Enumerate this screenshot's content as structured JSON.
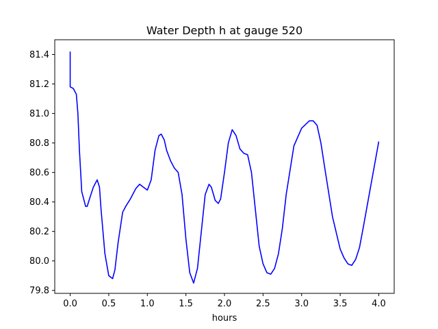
{
  "chart_data": {
    "type": "line",
    "title": "Water Depth h at gauge 520",
    "xlabel": "hours",
    "ylabel": "",
    "xlim": [
      -0.2,
      4.2
    ],
    "ylim": [
      79.78,
      81.5
    ],
    "xticks": [
      0.0,
      0.5,
      1.0,
      1.5,
      2.0,
      2.5,
      3.0,
      3.5,
      4.0
    ],
    "xtick_labels": [
      "0.0",
      "0.5",
      "1.0",
      "1.5",
      "2.0",
      "2.5",
      "3.0",
      "3.5",
      "4.0"
    ],
    "yticks": [
      79.8,
      80.0,
      80.2,
      80.4,
      80.6,
      80.8,
      81.0,
      81.2,
      81.4
    ],
    "ytick_labels": [
      "79.8",
      "80.0",
      "80.2",
      "80.4",
      "80.6",
      "80.8",
      "81.0",
      "81.2",
      "81.4"
    ],
    "grid": false,
    "legend": "none",
    "series": [
      {
        "color": "#0000ff",
        "x": [
          0.0,
          0.0,
          0.0,
          0.04,
          0.08,
          0.1,
          0.12,
          0.15,
          0.2,
          0.22,
          0.25,
          0.3,
          0.35,
          0.38,
          0.4,
          0.45,
          0.5,
          0.55,
          0.58,
          0.62,
          0.68,
          0.72,
          0.78,
          0.85,
          0.9,
          0.95,
          1.0,
          1.05,
          1.1,
          1.15,
          1.18,
          1.22,
          1.25,
          1.3,
          1.35,
          1.4,
          1.45,
          1.5,
          1.55,
          1.6,
          1.65,
          1.7,
          1.75,
          1.8,
          1.83,
          1.88,
          1.92,
          1.95,
          2.0,
          2.05,
          2.1,
          2.15,
          2.2,
          2.25,
          2.3,
          2.35,
          2.4,
          2.45,
          2.5,
          2.55,
          2.6,
          2.65,
          2.7,
          2.75,
          2.8,
          2.9,
          3.0,
          3.1,
          3.15,
          3.2,
          3.25,
          3.3,
          3.4,
          3.5,
          3.55,
          3.6,
          3.65,
          3.7,
          3.75,
          3.8,
          3.9,
          4.0
        ],
        "y": [
          81.42,
          81.3,
          81.18,
          81.17,
          81.13,
          81.0,
          80.75,
          80.47,
          80.37,
          80.37,
          80.42,
          80.5,
          80.55,
          80.5,
          80.35,
          80.05,
          79.9,
          79.88,
          79.94,
          80.12,
          80.33,
          80.37,
          80.42,
          80.49,
          80.52,
          80.5,
          80.48,
          80.55,
          80.75,
          80.85,
          80.86,
          80.82,
          80.75,
          80.68,
          80.63,
          80.6,
          80.45,
          80.15,
          79.92,
          79.85,
          79.95,
          80.2,
          80.45,
          80.52,
          80.5,
          80.41,
          80.39,
          80.42,
          80.6,
          80.8,
          80.89,
          80.85,
          80.76,
          80.73,
          80.72,
          80.6,
          80.35,
          80.1,
          79.98,
          79.92,
          79.91,
          79.95,
          80.05,
          80.22,
          80.45,
          80.78,
          80.9,
          80.95,
          80.95,
          80.92,
          80.8,
          80.63,
          80.3,
          80.08,
          80.02,
          79.98,
          79.97,
          80.01,
          80.09,
          80.23,
          80.52,
          80.81
        ]
      }
    ]
  }
}
